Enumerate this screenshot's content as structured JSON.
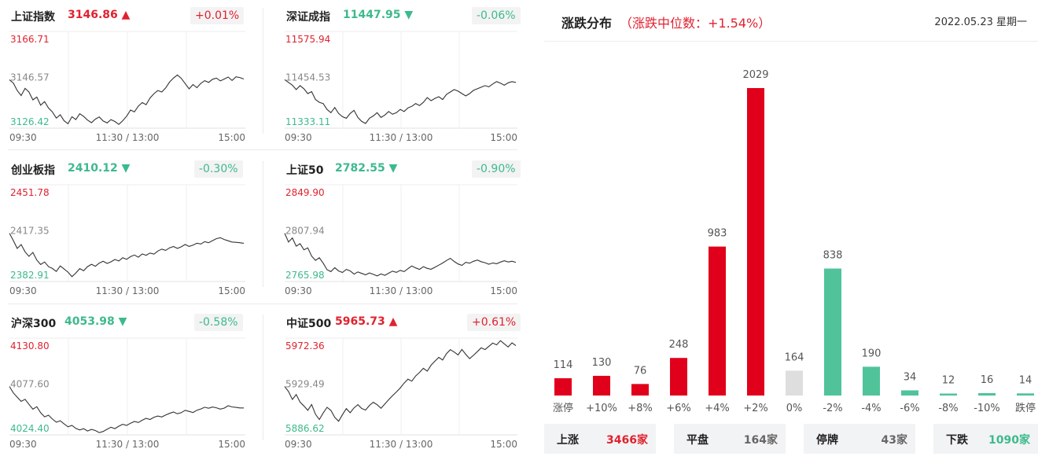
{
  "panels": [
    {
      "name": "上证指数",
      "price": "3146.86",
      "arrow": "▲",
      "dir": "up",
      "change": "+0.01%",
      "chart_data": {
        "type": "line",
        "y_max": "3166.71",
        "y_mid": "3146.57",
        "y_min": "3126.42",
        "ylim": [
          3126.42,
          3166.71
        ],
        "x_ticks": [
          "09:30",
          "11:30 / 13:00",
          "15:00"
        ],
        "values": [
          3146.6,
          3145.2,
          3142.1,
          3140.0,
          3143.0,
          3141.5,
          3138.2,
          3139.4,
          3136.0,
          3137.5,
          3134.8,
          3133.2,
          3130.6,
          3132.0,
          3129.5,
          3128.3,
          3131.2,
          3130.0,
          3132.4,
          3131.3,
          3129.8,
          3128.7,
          3130.2,
          3131.1,
          3129.4,
          3128.6,
          3130.0,
          3129.2,
          3128.0,
          3129.5,
          3131.4,
          3134.0,
          3133.2,
          3135.6,
          3137.1,
          3136.2,
          3139.0,
          3140.8,
          3142.1,
          3141.5,
          3143.2,
          3145.6,
          3147.3,
          3148.6,
          3147.2,
          3145.0,
          3142.8,
          3144.6,
          3143.3,
          3145.1,
          3146.2,
          3145.5,
          3146.8,
          3147.3,
          3146.1,
          3146.9,
          3147.7,
          3146.3,
          3147.8,
          3147.5,
          3146.9
        ]
      }
    },
    {
      "name": "深证成指",
      "price": "11447.95",
      "arrow": "▼",
      "dir": "down",
      "change": "-0.06%",
      "chart_data": {
        "type": "line",
        "y_max": "11575.94",
        "y_mid": "11454.53",
        "y_min": "11333.11",
        "ylim": [
          11333.11,
          11575.94
        ],
        "x_ticks": [
          "09:30",
          "11:30 / 13:00",
          "15:00"
        ],
        "values": [
          11455,
          11448,
          11441,
          11430,
          11440,
          11432,
          11420,
          11425,
          11405,
          11398,
          11395,
          11380,
          11372,
          11385,
          11370,
          11362,
          11358,
          11370,
          11378,
          11360,
          11350,
          11345,
          11358,
          11364,
          11372,
          11360,
          11366,
          11375,
          11368,
          11372,
          11380,
          11375,
          11384,
          11388,
          11395,
          11390,
          11398,
          11410,
          11402,
          11408,
          11412,
          11405,
          11418,
          11424,
          11430,
          11426,
          11420,
          11414,
          11420,
          11428,
          11432,
          11436,
          11440,
          11437,
          11444,
          11450,
          11446,
          11441,
          11447,
          11450,
          11448
        ]
      }
    },
    {
      "name": "创业板指",
      "price": "2410.12",
      "arrow": "▼",
      "dir": "down",
      "change": "-0.30%",
      "chart_data": {
        "type": "line",
        "y_max": "2451.78",
        "y_mid": "2417.35",
        "y_min": "2382.91",
        "ylim": [
          2382.91,
          2451.78
        ],
        "x_ticks": [
          "09:30",
          "11:30 / 13:00",
          "15:00"
        ],
        "values": [
          2417.3,
          2412.0,
          2406.5,
          2409.2,
          2404.0,
          2400.8,
          2403.6,
          2398.2,
          2395.0,
          2396.8,
          2393.5,
          2392.2,
          2390.1,
          2394.0,
          2391.8,
          2389.6,
          2386.4,
          2388.9,
          2392.1,
          2390.6,
          2393.5,
          2395.2,
          2393.8,
          2396.0,
          2397.3,
          2395.8,
          2396.9,
          2398.6,
          2397.5,
          2399.8,
          2398.7,
          2400.6,
          2401.8,
          2400.2,
          2402.5,
          2401.6,
          2403.2,
          2402.4,
          2404.6,
          2406.0,
          2405.1,
          2406.9,
          2407.8,
          2406.5,
          2407.6,
          2409.3,
          2407.9,
          2408.8,
          2410.2,
          2409.6,
          2411.3,
          2410.5,
          2412.0,
          2413.4,
          2414.1,
          2412.8,
          2411.9,
          2411.0,
          2410.8,
          2410.5,
          2410.1
        ]
      }
    },
    {
      "name": "上证50",
      "price": "2782.55",
      "arrow": "▼",
      "dir": "down",
      "change": "-0.90%",
      "chart_data": {
        "type": "line",
        "y_max": "2849.90",
        "y_mid": "2807.94",
        "y_min": "2765.98",
        "ylim": [
          2765.98,
          2849.9
        ],
        "x_ticks": [
          "09:30",
          "11:30 / 13:00",
          "15:00"
        ],
        "values": [
          2807.9,
          2800.2,
          2803.8,
          2796.6,
          2798.8,
          2793.5,
          2795.2,
          2788.0,
          2784.3,
          2786.6,
          2781.9,
          2776.2,
          2774.6,
          2778.0,
          2775.1,
          2773.8,
          2776.5,
          2775.2,
          2772.4,
          2774.3,
          2773.0,
          2771.8,
          2773.4,
          2772.2,
          2770.8,
          2772.5,
          2771.4,
          2773.2,
          2775.0,
          2773.9,
          2775.7,
          2774.6,
          2777.1,
          2779.4,
          2777.8,
          2776.5,
          2778.9,
          2777.4,
          2776.6,
          2778.3,
          2780.2,
          2782.0,
          2784.2,
          2786.1,
          2783.4,
          2781.2,
          2780.0,
          2782.6,
          2781.9,
          2783.5,
          2784.6,
          2783.2,
          2782.3,
          2781.0,
          2782.1,
          2781.4,
          2782.8,
          2784.0,
          2782.9,
          2783.6,
          2782.6
        ]
      }
    },
    {
      "name": "沪深300",
      "price": "4053.98",
      "arrow": "▼",
      "dir": "down",
      "change": "-0.58%",
      "chart_data": {
        "type": "line",
        "y_max": "4130.80",
        "y_mid": "4077.60",
        "y_min": "4024.40",
        "ylim": [
          4024.4,
          4130.8
        ],
        "x_ticks": [
          "09:30",
          "11:30 / 13:00",
          "15:00"
        ],
        "values": [
          4077.6,
          4070.5,
          4065.8,
          4061.2,
          4063.5,
          4058.0,
          4052.6,
          4055.4,
          4048.7,
          4044.2,
          4046.0,
          4041.8,
          4038.3,
          4039.9,
          4036.4,
          4033.2,
          4034.8,
          4031.5,
          4029.8,
          4031.2,
          4028.6,
          4030.4,
          4029.2,
          4026.8,
          4028.1,
          4030.5,
          4032.8,
          4031.2,
          4033.9,
          4036.0,
          4034.8,
          4037.2,
          4039.1,
          4038.0,
          4040.5,
          4042.6,
          4041.3,
          4043.8,
          4045.1,
          4044.0,
          4046.2,
          4048.0,
          4049.5,
          4047.6,
          4048.8,
          4051.4,
          4050.2,
          4049.0,
          4051.5,
          4052.9,
          4054.8,
          4053.6,
          4055.0,
          4054.2,
          4052.7,
          4053.8,
          4056.4,
          4055.1,
          4054.6,
          4054.0,
          4054.0
        ]
      }
    },
    {
      "name": "中证500",
      "price": "5965.73",
      "arrow": "▲",
      "dir": "up",
      "change": "+0.61%",
      "chart_data": {
        "type": "line",
        "y_max": "5972.36",
        "y_mid": "5929.49",
        "y_min": "5886.62",
        "ylim": [
          5886.62,
          5972.36
        ],
        "x_ticks": [
          "09:30",
          "11:30 / 13:00",
          "15:00"
        ],
        "values": [
          5929.5,
          5925.0,
          5918.0,
          5922.3,
          5915.6,
          5912.2,
          5908.4,
          5913.5,
          5904.8,
          5900.2,
          5906.0,
          5911.0,
          5908.3,
          5902.1,
          5898.7,
          5904.5,
          5909.8,
          5906.2,
          5910.5,
          5913.4,
          5910.0,
          5908.6,
          5912.7,
          5915.5,
          5913.3,
          5910.2,
          5914.0,
          5917.8,
          5921.4,
          5924.6,
          5928.2,
          5932.5,
          5936.0,
          5934.2,
          5938.8,
          5942.0,
          5945.6,
          5943.1,
          5948.4,
          5952.0,
          5955.3,
          5953.0,
          5958.6,
          5962.1,
          5960.0,
          5957.5,
          5962.3,
          5958.0,
          5954.2,
          5957.1,
          5960.4,
          5963.8,
          5962.2,
          5965.1,
          5968.0,
          5966.4,
          5970.1,
          5967.3,
          5964.5,
          5968.2,
          5965.7
        ]
      }
    }
  ],
  "distribution": {
    "title": "涨跌分布",
    "median_text": "（涨跌中位数：+1.54%）",
    "date": "2022.05.23 星期一",
    "colors": {
      "up": "#e0001b",
      "flat": "#dedede",
      "down": "#50c39a"
    },
    "chart_data": {
      "type": "bar",
      "categories": [
        "涨停",
        "+10%",
        "+8%",
        "+6%",
        "+4%",
        "+2%",
        "0%",
        "-2%",
        "-4%",
        "-6%",
        "-8%",
        "-10%",
        "跌停"
      ],
      "values": [
        114,
        130,
        76,
        248,
        983,
        2029,
        164,
        838,
        190,
        34,
        12,
        16,
        14
      ],
      "value_labels": [
        "114",
        "130",
        "76",
        "248",
        "983",
        "2029",
        "164",
        "838",
        "190",
        "34",
        "12",
        "16",
        "14"
      ],
      "kinds": [
        "up",
        "up",
        "up",
        "up",
        "up",
        "up",
        "flat",
        "down",
        "down",
        "down",
        "down",
        "down",
        "down"
      ],
      "ylim": [
        0,
        2029
      ]
    },
    "summary": [
      {
        "label": "上涨",
        "value": "3466家",
        "kind": "up"
      },
      {
        "label": "平盘",
        "value": "164家",
        "kind": "neutral"
      },
      {
        "label": "停牌",
        "value": "43家",
        "kind": "neutral"
      },
      {
        "label": "下跌",
        "value": "1090家",
        "kind": "down"
      }
    ]
  }
}
